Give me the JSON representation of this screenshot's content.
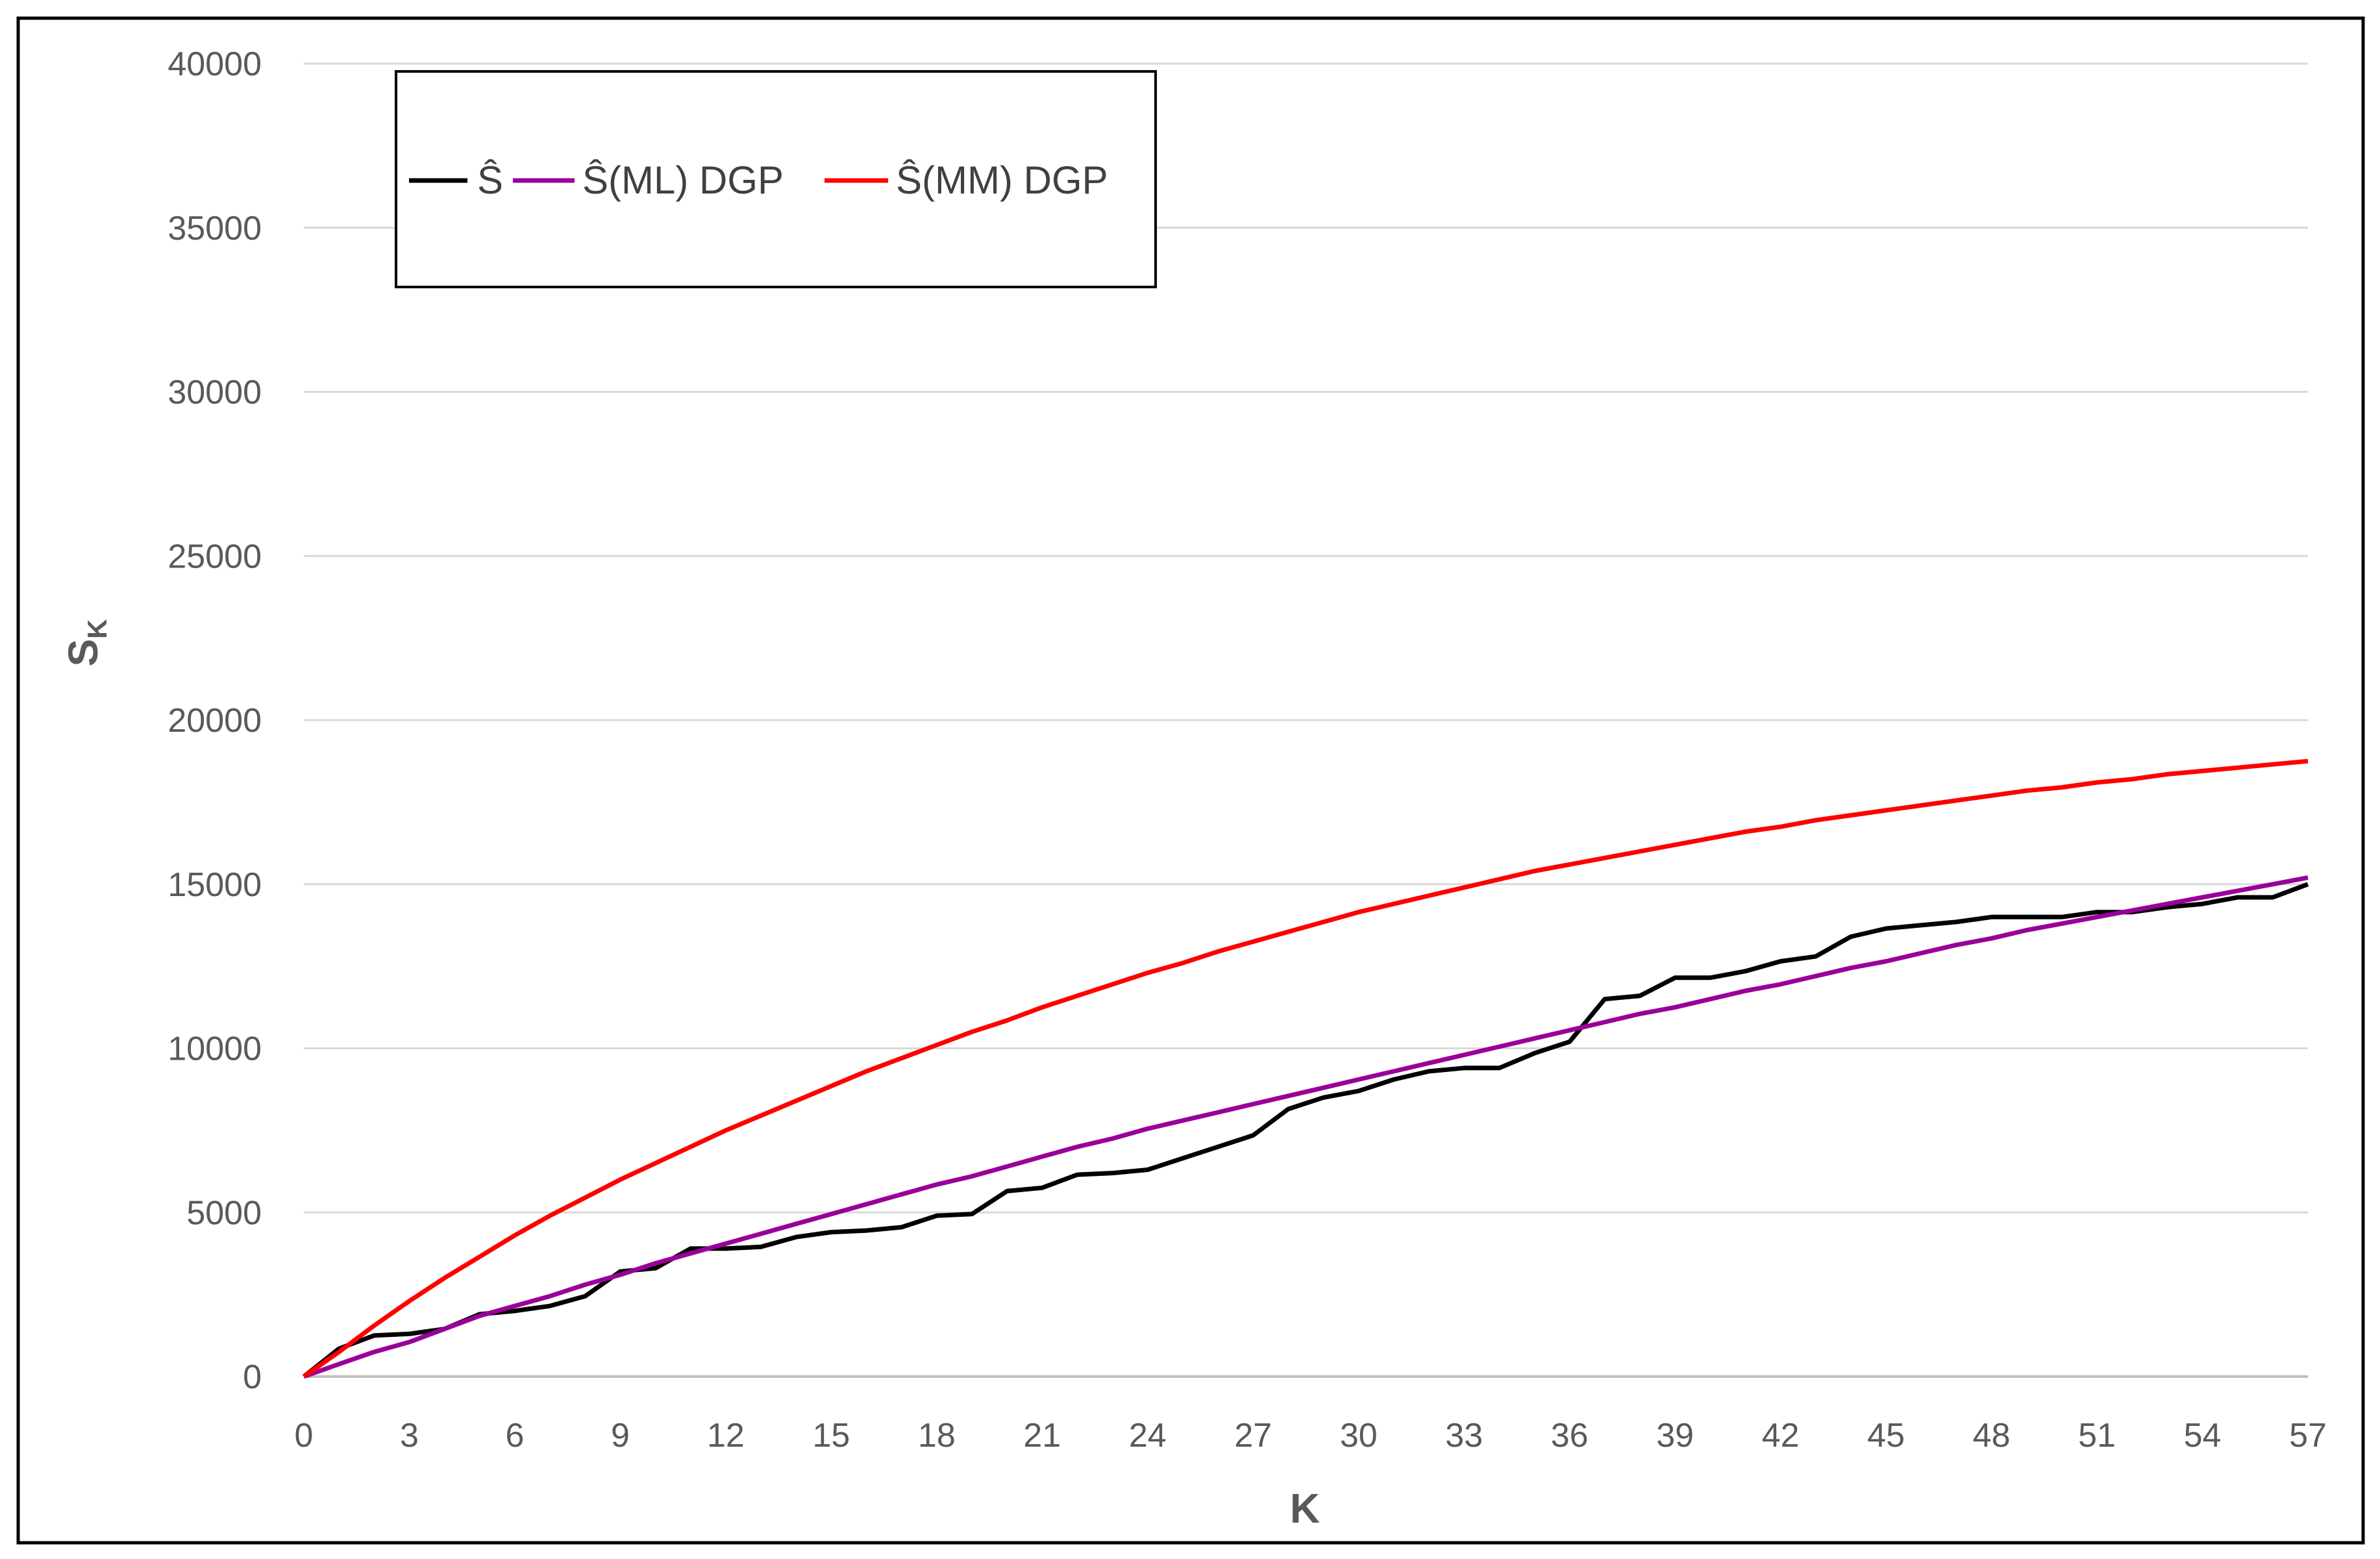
{
  "chart_data": {
    "type": "line",
    "title": "",
    "xlabel": "K",
    "ylabel_main": "S",
    "ylabel_sub": "K",
    "xlim": [
      0,
      57
    ],
    "ylim": [
      0,
      40000
    ],
    "x_ticks": [
      0,
      3,
      6,
      9,
      12,
      15,
      18,
      21,
      24,
      27,
      30,
      33,
      36,
      39,
      42,
      45,
      48,
      51,
      54,
      57
    ],
    "y_ticks": [
      0,
      5000,
      10000,
      15000,
      20000,
      25000,
      30000,
      35000,
      40000
    ],
    "grid": "horizontal",
    "legend_position": "top-left",
    "x": [
      0,
      1,
      2,
      3,
      4,
      5,
      6,
      7,
      8,
      9,
      10,
      11,
      12,
      13,
      14,
      15,
      16,
      17,
      18,
      19,
      20,
      21,
      22,
      23,
      24,
      25,
      26,
      27,
      28,
      29,
      30,
      31,
      32,
      33,
      34,
      35,
      36,
      37,
      38,
      39,
      40,
      41,
      42,
      43,
      44,
      45,
      46,
      47,
      48,
      49,
      50,
      51,
      52,
      53,
      54,
      55,
      56,
      57
    ],
    "series": [
      {
        "name": "Ŝ",
        "color": "#000000",
        "values": [
          0,
          850,
          1250,
          1300,
          1450,
          1900,
          2000,
          2150,
          2450,
          3200,
          3300,
          3900,
          3900,
          3950,
          4250,
          4400,
          4450,
          4550,
          4900,
          4950,
          5650,
          5750,
          6150,
          6200,
          6300,
          6650,
          7000,
          7350,
          8150,
          8500,
          8700,
          9050,
          9300,
          9400,
          9400,
          9850,
          10200,
          11500,
          11600,
          12150,
          12150,
          12350,
          12650,
          12800,
          13400,
          13650,
          13750,
          13850,
          14000,
          14000,
          14000,
          14150,
          14150,
          14300,
          14400,
          14600,
          14600,
          15000
        ]
      },
      {
        "name": "Ŝ(ML) DGP",
        "color": "#990099",
        "values": [
          0,
          380,
          750,
          1050,
          1450,
          1850,
          2150,
          2450,
          2800,
          3100,
          3450,
          3750,
          4050,
          4350,
          4650,
          4950,
          5250,
          5550,
          5850,
          6100,
          6400,
          6700,
          7000,
          7250,
          7550,
          7800,
          8050,
          8300,
          8550,
          8800,
          9050,
          9300,
          9550,
          9800,
          10050,
          10300,
          10550,
          10800,
          11050,
          11250,
          11500,
          11750,
          11950,
          12200,
          12450,
          12650,
          12900,
          13150,
          13350,
          13600,
          13800,
          14000,
          14200,
          14400,
          14600,
          14800,
          15000,
          15200
        ]
      },
      {
        "name": "Ŝ(MM) DGP",
        "color": "#ff0000",
        "values": [
          0,
          750,
          1550,
          2300,
          3000,
          3650,
          4300,
          4900,
          5450,
          6000,
          6500,
          7000,
          7500,
          7950,
          8400,
          8850,
          9300,
          9700,
          10100,
          10500,
          10850,
          11250,
          11600,
          11950,
          12300,
          12600,
          12950,
          13250,
          13550,
          13850,
          14150,
          14400,
          14650,
          14900,
          15150,
          15400,
          15600,
          15800,
          16000,
          16200,
          16400,
          16600,
          16750,
          16950,
          17100,
          17250,
          17400,
          17550,
          17700,
          17850,
          17950,
          18100,
          18200,
          18350,
          18450,
          18550,
          18650,
          18750
        ]
      }
    ]
  }
}
